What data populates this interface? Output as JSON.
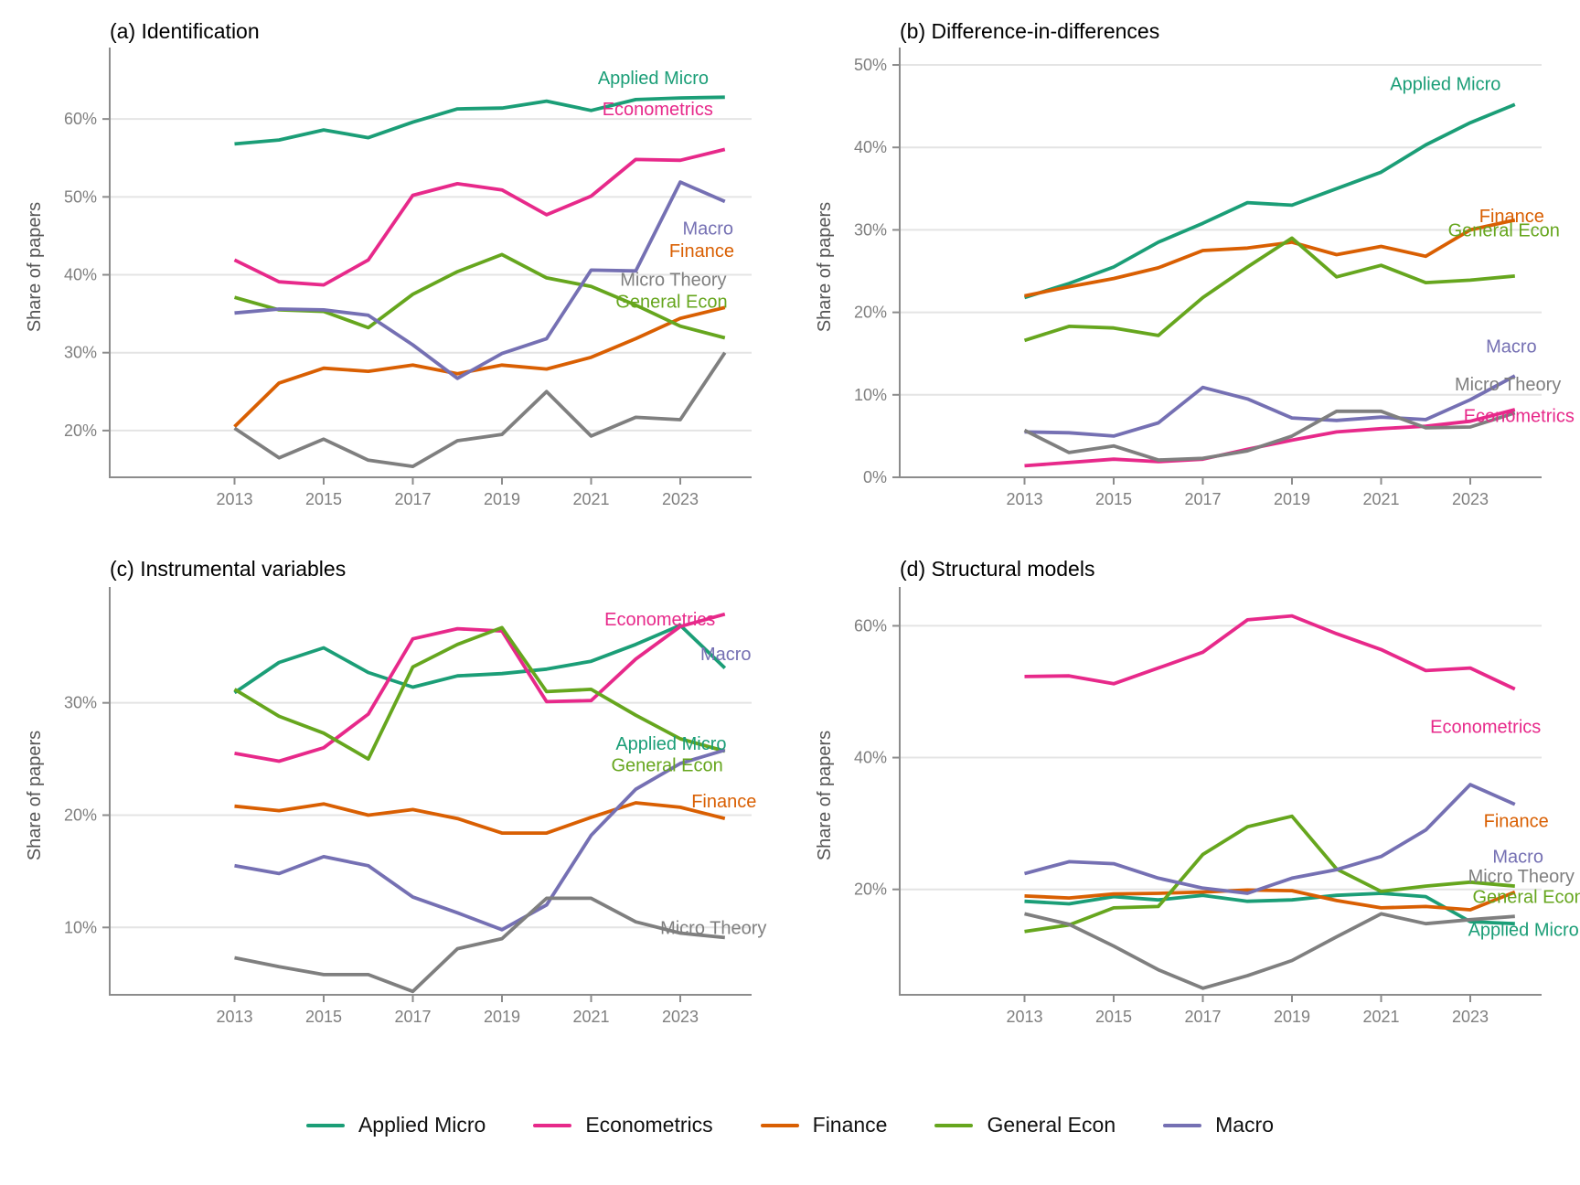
{
  "figure": {
    "ylabel": "Share of papers",
    "x_tick_labels": [
      "2013",
      "2015",
      "2017",
      "2019",
      "2021",
      "2023"
    ]
  },
  "legend": {
    "position": "bottom-center",
    "items": [
      {
        "label": "Applied Micro",
        "color": "#1b9e77"
      },
      {
        "label": "Econometrics",
        "color": "#e7298a"
      },
      {
        "label": "Finance",
        "color": "#d95f02"
      },
      {
        "label": "General Econ",
        "color": "#66a61e"
      },
      {
        "label": "Macro",
        "color": "#7570b3"
      }
    ]
  },
  "chart_data": [
    {
      "id": "a",
      "type": "line",
      "title": "(a) Identification",
      "ylabel": "Share of papers",
      "x": [
        2013,
        2014,
        2015,
        2016,
        2017,
        2018,
        2019,
        2020,
        2021,
        2022,
        2023,
        2024
      ],
      "xticks": [
        2013,
        2015,
        2017,
        2019,
        2021,
        2023
      ],
      "yticks": [
        20,
        30,
        40,
        50,
        60
      ],
      "ytick_suffix": "%",
      "xlim": [
        2010.2,
        2024.6
      ],
      "ylim": [
        14,
        68
      ],
      "grid": "horizontal-only",
      "series": [
        {
          "name": "Applied Micro",
          "color": "#1b9e77",
          "values": [
            56.8,
            57.3,
            58.6,
            57.6,
            59.6,
            61.3,
            61.4,
            62.3,
            61.1,
            62.5,
            62.7,
            62.8
          ],
          "label_at": [
            2021.15,
            65.2
          ]
        },
        {
          "name": "Econometrics",
          "color": "#e7298a",
          "values": [
            41.9,
            39.1,
            38.7,
            41.9,
            50.2,
            51.7,
            50.9,
            47.7,
            50.1,
            54.8,
            54.7,
            56.1
          ],
          "label_at": [
            2021.25,
            61.2
          ]
        },
        {
          "name": "Finance",
          "color": "#d95f02",
          "values": [
            20.5,
            26.1,
            28.0,
            27.6,
            28.4,
            27.3,
            28.4,
            27.9,
            29.4,
            31.8,
            34.4,
            35.8
          ],
          "label_at": [
            2022.75,
            43.0
          ]
        },
        {
          "name": "General Econ",
          "color": "#66a61e",
          "values": [
            37.1,
            35.5,
            35.3,
            33.2,
            37.5,
            40.4,
            42.6,
            39.6,
            38.5,
            36.1,
            33.4,
            31.9
          ],
          "label_at": [
            2021.55,
            36.5
          ]
        },
        {
          "name": "Macro",
          "color": "#7570b3",
          "values": [
            35.1,
            35.6,
            35.5,
            34.8,
            31.0,
            26.7,
            29.9,
            31.8,
            40.6,
            40.5,
            51.9,
            49.4
          ],
          "label_at": [
            2023.05,
            45.9
          ]
        },
        {
          "name": "Micro Theory",
          "color": "#7f7f7f",
          "values": [
            20.3,
            16.5,
            18.9,
            16.2,
            15.4,
            18.7,
            19.5,
            25.0,
            19.3,
            21.7,
            21.4,
            30.0
          ],
          "label_at": [
            2021.65,
            39.3
          ]
        }
      ]
    },
    {
      "id": "b",
      "type": "line",
      "title": "(b) Difference-in-differences",
      "ylabel": "Share of papers",
      "x": [
        2013,
        2014,
        2015,
        2016,
        2017,
        2018,
        2019,
        2020,
        2021,
        2022,
        2023,
        2024
      ],
      "xticks": [
        2013,
        2015,
        2017,
        2019,
        2021,
        2023
      ],
      "yticks": [
        0,
        10,
        20,
        30,
        40,
        50
      ],
      "ytick_suffix": "%",
      "xlim": [
        2010.2,
        2024.6
      ],
      "ylim": [
        0,
        51
      ],
      "grid": "horizontal-only",
      "series": [
        {
          "name": "Applied Micro",
          "color": "#1b9e77",
          "values": [
            21.8,
            23.5,
            25.5,
            28.5,
            30.8,
            33.3,
            33.0,
            35.0,
            37.0,
            40.3,
            43.0,
            45.2
          ],
          "label_at": [
            2021.2,
            47.6
          ]
        },
        {
          "name": "Econometrics",
          "color": "#e7298a",
          "values": [
            1.4,
            1.8,
            2.2,
            1.9,
            2.2,
            3.4,
            4.5,
            5.5,
            5.9,
            6.2,
            6.8,
            8.2
          ],
          "label_at": [
            2022.85,
            7.4
          ]
        },
        {
          "name": "Finance",
          "color": "#d95f02",
          "values": [
            22.0,
            23.1,
            24.1,
            25.4,
            27.5,
            27.8,
            28.5,
            27.0,
            28.0,
            26.8,
            30.0,
            31.2
          ],
          "label_at": [
            2023.2,
            31.6
          ]
        },
        {
          "name": "General Econ",
          "color": "#66a61e",
          "values": [
            16.6,
            18.3,
            18.1,
            17.2,
            21.8,
            25.5,
            29.0,
            24.3,
            25.7,
            23.6,
            23.9,
            24.4
          ],
          "label_at": [
            2022.5,
            29.9
          ]
        },
        {
          "name": "Macro",
          "color": "#7570b3",
          "values": [
            5.5,
            5.4,
            5.0,
            6.6,
            10.9,
            9.5,
            7.2,
            6.9,
            7.3,
            7.0,
            9.4,
            12.3
          ],
          "label_at": [
            2023.35,
            15.8
          ]
        },
        {
          "name": "Micro Theory",
          "color": "#7f7f7f",
          "values": [
            5.7,
            3.0,
            3.8,
            2.1,
            2.3,
            3.2,
            5.0,
            8.0,
            8.0,
            6.0,
            6.1,
            7.8
          ],
          "label_at": [
            2022.65,
            11.2
          ]
        }
      ]
    },
    {
      "id": "c",
      "type": "line",
      "title": "(c) Instrumental variables",
      "ylabel": "Share of papers",
      "x": [
        2013,
        2014,
        2015,
        2016,
        2017,
        2018,
        2019,
        2020,
        2021,
        2022,
        2023,
        2024
      ],
      "xticks": [
        2013,
        2015,
        2017,
        2019,
        2021,
        2023
      ],
      "yticks": [
        10,
        20,
        30
      ],
      "ytick_suffix": "%",
      "xlim": [
        2010.2,
        2024.6
      ],
      "ylim": [
        4,
        39.5
      ],
      "grid": "horizontal-only",
      "series": [
        {
          "name": "Applied Micro",
          "color": "#1b9e77",
          "values": [
            30.9,
            33.6,
            34.9,
            32.7,
            31.4,
            32.4,
            32.6,
            33.0,
            33.7,
            35.2,
            36.9,
            33.1
          ],
          "label_at": [
            2021.55,
            26.3
          ]
        },
        {
          "name": "Econometrics",
          "color": "#e7298a",
          "values": [
            25.5,
            24.8,
            26.0,
            29.0,
            35.7,
            36.6,
            36.4,
            30.1,
            30.2,
            33.9,
            36.8,
            37.9
          ],
          "label_at": [
            2021.3,
            37.4
          ]
        },
        {
          "name": "Finance",
          "color": "#d95f02",
          "values": [
            20.8,
            20.4,
            21.0,
            20.0,
            20.5,
            19.7,
            18.4,
            18.4,
            19.8,
            21.1,
            20.7,
            19.7
          ],
          "label_at": [
            2023.25,
            21.2
          ]
        },
        {
          "name": "General Econ",
          "color": "#66a61e",
          "values": [
            31.2,
            28.8,
            27.3,
            25.0,
            33.2,
            35.2,
            36.7,
            31.0,
            31.2,
            28.9,
            26.8,
            25.7
          ],
          "label_at": [
            2021.45,
            24.4
          ]
        },
        {
          "name": "Macro",
          "color": "#7570b3",
          "values": [
            15.5,
            14.8,
            16.3,
            15.5,
            12.7,
            11.3,
            9.8,
            12.0,
            18.2,
            22.3,
            24.6,
            25.8
          ],
          "label_at": [
            2023.45,
            34.3
          ]
        },
        {
          "name": "Micro Theory",
          "color": "#7f7f7f",
          "values": [
            7.3,
            6.5,
            5.8,
            5.8,
            4.3,
            8.1,
            9.0,
            12.6,
            12.6,
            10.5,
            9.5,
            9.1
          ],
          "label_at": [
            2022.55,
            9.9
          ]
        }
      ]
    },
    {
      "id": "d",
      "type": "line",
      "title": "(d) Structural models",
      "ylabel": "Share of papers",
      "x": [
        2013,
        2014,
        2015,
        2016,
        2017,
        2018,
        2019,
        2020,
        2021,
        2022,
        2023,
        2024
      ],
      "xticks": [
        2013,
        2015,
        2017,
        2019,
        2021,
        2023
      ],
      "yticks": [
        20,
        40,
        60
      ],
      "ytick_suffix": "%",
      "xlim": [
        2010.2,
        2024.6
      ],
      "ylim": [
        4,
        64.5
      ],
      "grid": "horizontal-only",
      "series": [
        {
          "name": "Applied Micro",
          "color": "#1b9e77",
          "values": [
            18.2,
            17.8,
            18.9,
            18.4,
            19.1,
            18.2,
            18.4,
            19.1,
            19.4,
            18.9,
            15.1,
            14.8
          ],
          "label_at": [
            2022.95,
            13.8
          ]
        },
        {
          "name": "Econometrics",
          "color": "#e7298a",
          "values": [
            52.3,
            52.4,
            51.2,
            53.6,
            56.0,
            60.9,
            61.5,
            58.8,
            56.4,
            53.2,
            53.6,
            50.4
          ],
          "label_at": [
            2022.1,
            44.6
          ]
        },
        {
          "name": "Finance",
          "color": "#d95f02",
          "values": [
            19.0,
            18.7,
            19.3,
            19.4,
            19.6,
            19.9,
            19.8,
            18.3,
            17.2,
            17.4,
            16.9,
            19.6
          ],
          "label_at": [
            2023.3,
            30.3
          ]
        },
        {
          "name": "General Econ",
          "color": "#66a61e",
          "values": [
            13.6,
            14.6,
            17.2,
            17.4,
            25.3,
            29.5,
            31.1,
            23.1,
            19.7,
            20.5,
            21.1,
            20.5
          ],
          "label_at": [
            2023.05,
            18.8
          ]
        },
        {
          "name": "Macro",
          "color": "#7570b3",
          "values": [
            22.4,
            24.2,
            23.9,
            21.7,
            20.2,
            19.4,
            21.7,
            23.0,
            25.0,
            29.0,
            35.9,
            32.9
          ],
          "label_at": [
            2023.5,
            24.9
          ]
        },
        {
          "name": "Micro Theory",
          "color": "#7f7f7f",
          "values": [
            16.3,
            14.7,
            11.4,
            7.8,
            5.0,
            6.9,
            9.2,
            12.8,
            16.3,
            14.8,
            15.4,
            15.9
          ],
          "label_at": [
            2022.95,
            21.9
          ]
        }
      ]
    }
  ]
}
